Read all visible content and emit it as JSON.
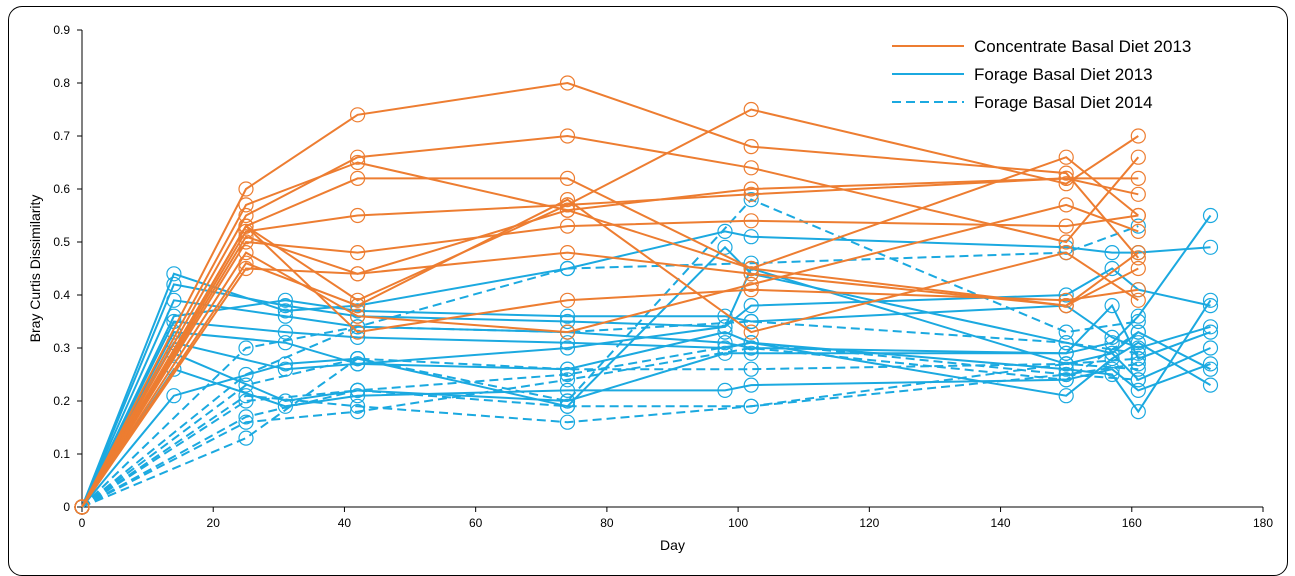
{
  "chart_data": {
    "type": "line",
    "xlabel": "Day",
    "ylabel": "Bray Curtis Dissimilarity",
    "xlim": [
      0,
      180
    ],
    "ylim": [
      0,
      0.9
    ],
    "xticks": [
      0,
      20,
      40,
      60,
      80,
      100,
      120,
      140,
      160,
      180
    ],
    "yticks": [
      0,
      0.1,
      0.2,
      0.3,
      0.4,
      0.5,
      0.6,
      0.7,
      0.8,
      0.9
    ],
    "grid": false,
    "legend_position": "top-right",
    "legend": [
      {
        "label": "Concentrate Basal Diet 2013",
        "color": "#ED7D31",
        "dash": "solid"
      },
      {
        "label": "Forage Basal Diet 2013",
        "color": "#1BA9E0",
        "dash": "solid"
      },
      {
        "label": "Forage Basal Diet 2014",
        "color": "#1BA9E0",
        "dash": "dashed"
      }
    ],
    "series": [
      {
        "group": "Concentrate Basal Diet 2013",
        "x": [
          0,
          25,
          42,
          74,
          102,
          150,
          161
        ],
        "y": [
          0,
          0.6,
          0.74,
          0.8,
          0.68,
          0.63,
          0.47
        ]
      },
      {
        "group": "Concentrate Basal Diet 2013",
        "x": [
          0,
          25,
          42,
          74,
          102,
          150,
          161
        ],
        "y": [
          0,
          0.57,
          0.65,
          0.56,
          0.6,
          0.62,
          0.59
        ]
      },
      {
        "group": "Concentrate Basal Diet 2013",
        "x": [
          0,
          25,
          42,
          74,
          102,
          150,
          161
        ],
        "y": [
          0,
          0.55,
          0.66,
          0.7,
          0.64,
          0.5,
          0.66
        ]
      },
      {
        "group": "Concentrate Basal Diet 2013",
        "x": [
          0,
          25,
          42,
          74,
          102,
          150,
          161
        ],
        "y": [
          0,
          0.53,
          0.62,
          0.62,
          0.45,
          0.38,
          0.48
        ]
      },
      {
        "group": "Concentrate Basal Diet 2013",
        "x": [
          0,
          25,
          42,
          74,
          102,
          150,
          161
        ],
        "y": [
          0,
          0.52,
          0.55,
          0.57,
          0.59,
          0.62,
          0.62
        ]
      },
      {
        "group": "Concentrate Basal Diet 2013",
        "x": [
          0,
          25,
          42,
          74,
          102,
          150,
          161
        ],
        "y": [
          0,
          0.5,
          0.48,
          0.53,
          0.54,
          0.53,
          0.55
        ]
      },
      {
        "group": "Concentrate Basal Diet 2013",
        "x": [
          0,
          25,
          42,
          74,
          102,
          150,
          161
        ],
        "y": [
          0,
          0.45,
          0.44,
          0.48,
          0.44,
          0.38,
          0.45
        ]
      },
      {
        "group": "Concentrate Basal Diet 2013",
        "x": [
          0,
          25,
          42,
          74,
          102,
          150,
          161
        ],
        "y": [
          0,
          0.53,
          0.39,
          0.57,
          0.75,
          0.61,
          0.7
        ]
      },
      {
        "group": "Concentrate Basal Diet 2013",
        "x": [
          0,
          25,
          42,
          74,
          102,
          150,
          161
        ],
        "y": [
          0,
          0.48,
          0.36,
          0.33,
          0.42,
          0.57,
          0.52
        ]
      },
      {
        "group": "Concentrate Basal Diet 2013",
        "x": [
          0,
          25,
          42,
          74,
          102,
          150,
          161
        ],
        "y": [
          0,
          0.53,
          0.33,
          0.39,
          0.41,
          0.39,
          0.41
        ]
      },
      {
        "group": "Concentrate Basal Diet 2013",
        "x": [
          0,
          25,
          42,
          74,
          102,
          150,
          161
        ],
        "y": [
          0,
          0.51,
          0.44,
          0.56,
          0.45,
          0.66,
          0.55
        ]
      },
      {
        "group": "Concentrate Basal Diet 2013",
        "x": [
          0,
          25,
          42,
          74,
          102,
          150,
          161
        ],
        "y": [
          0,
          0.46,
          0.38,
          0.58,
          0.33,
          0.48,
          0.39
        ]
      },
      {
        "group": "Forage Basal Diet 2013",
        "x": [
          0,
          14,
          31,
          42,
          74,
          98,
          102,
          150,
          157,
          161,
          172
        ],
        "y": [
          0,
          0.44,
          0.37,
          0.38,
          0.45,
          0.52,
          0.51,
          0.49,
          0.48,
          0.48,
          0.49
        ]
      },
      {
        "group": "Forage Basal Diet 2013",
        "x": [
          0,
          14,
          31,
          42,
          74,
          98,
          102,
          150,
          157,
          161,
          172
        ],
        "y": [
          0,
          0.42,
          0.38,
          0.36,
          0.35,
          0.34,
          0.38,
          0.4,
          0.45,
          0.41,
          0.38
        ]
      },
      {
        "group": "Forage Basal Diet 2013",
        "x": [
          0,
          14,
          31,
          42,
          74,
          98,
          102,
          150,
          157,
          161,
          172
        ],
        "y": [
          0,
          0.39,
          0.36,
          0.34,
          0.33,
          0.31,
          0.3,
          0.29,
          0.31,
          0.36,
          0.55
        ]
      },
      {
        "group": "Forage Basal Diet 2013",
        "x": [
          0,
          14,
          31,
          42,
          74,
          98,
          102,
          150,
          157,
          161,
          172
        ],
        "y": [
          0,
          0.35,
          0.33,
          0.32,
          0.31,
          0.3,
          0.31,
          0.26,
          0.25,
          0.18,
          0.39
        ]
      },
      {
        "group": "Forage Basal Diet 2013",
        "x": [
          0,
          14,
          31,
          42,
          74,
          98,
          102,
          150,
          157,
          161,
          172
        ],
        "y": [
          0,
          0.33,
          0.31,
          0.27,
          0.3,
          0.34,
          0.45,
          0.27,
          0.29,
          0.33,
          0.26
        ]
      },
      {
        "group": "Forage Basal Diet 2013",
        "x": [
          0,
          14,
          31,
          42,
          74,
          98,
          102,
          150,
          157,
          161,
          172
        ],
        "y": [
          0,
          0.31,
          0.26,
          0.27,
          0.26,
          0.33,
          0.31,
          0.21,
          0.28,
          0.31,
          0.23
        ]
      },
      {
        "group": "Forage Basal Diet 2013",
        "x": [
          0,
          14,
          31,
          42,
          74,
          98,
          102,
          150,
          157,
          161,
          172
        ],
        "y": [
          0,
          0.29,
          0.2,
          0.22,
          0.2,
          0.29,
          0.29,
          0.29,
          0.38,
          0.28,
          0.33
        ]
      },
      {
        "group": "Forage Basal Diet 2013",
        "x": [
          0,
          14,
          31,
          42,
          74,
          98,
          102,
          150,
          157,
          161,
          172
        ],
        "y": [
          0,
          0.26,
          0.19,
          0.21,
          0.22,
          0.22,
          0.23,
          0.24,
          0.26,
          0.22,
          0.27
        ]
      },
      {
        "group": "Forage Basal Diet 2013",
        "x": [
          0,
          14,
          31,
          42,
          74,
          98,
          102,
          150,
          157,
          161,
          172
        ],
        "y": [
          0,
          0.21,
          0.27,
          0.28,
          0.19,
          0.49,
          0.44,
          0.31,
          0.29,
          0.24,
          0.3
        ]
      },
      {
        "group": "Forage Basal Diet 2013",
        "x": [
          0,
          14,
          31,
          42,
          74,
          98,
          102,
          150,
          157,
          161,
          172
        ],
        "y": [
          0,
          0.36,
          0.39,
          0.37,
          0.36,
          0.36,
          0.35,
          0.38,
          0.32,
          0.3,
          0.34
        ]
      },
      {
        "group": "Forage Basal Diet 2014",
        "x": [
          0,
          25,
          42,
          74,
          102,
          150,
          161
        ],
        "y": [
          0,
          0.3,
          0.34,
          0.45,
          0.46,
          0.48,
          0.53
        ]
      },
      {
        "group": "Forage Basal Diet 2014",
        "x": [
          0,
          25,
          42,
          74,
          102,
          150,
          161
        ],
        "y": [
          0,
          0.25,
          0.34,
          0.33,
          0.35,
          0.31,
          0.29
        ]
      },
      {
        "group": "Forage Basal Diet 2014",
        "x": [
          0,
          25,
          42,
          74,
          102,
          150,
          161
        ],
        "y": [
          0,
          0.23,
          0.28,
          0.26,
          0.26,
          0.27,
          0.26
        ]
      },
      {
        "group": "Forage Basal Diet 2014",
        "x": [
          0,
          25,
          42,
          74,
          102,
          150,
          161
        ],
        "y": [
          0,
          0.21,
          0.19,
          0.16,
          0.19,
          0.25,
          0.24
        ]
      },
      {
        "group": "Forage Basal Diet 2014",
        "x": [
          0,
          25,
          42,
          74,
          102,
          150,
          161
        ],
        "y": [
          0,
          0.2,
          0.22,
          0.19,
          0.19,
          0.27,
          0.28
        ]
      },
      {
        "group": "Forage Basal Diet 2014",
        "x": [
          0,
          25,
          42,
          74,
          102,
          150,
          161
        ],
        "y": [
          0,
          0.17,
          0.22,
          0.25,
          0.31,
          0.25,
          0.27
        ]
      },
      {
        "group": "Forage Basal Diet 2014",
        "x": [
          0,
          25,
          42,
          74,
          102,
          150,
          161
        ],
        "y": [
          0,
          0.16,
          0.18,
          0.24,
          0.3,
          0.24,
          0.33
        ]
      },
      {
        "group": "Forage Basal Diet 2014",
        "x": [
          0,
          25,
          42,
          74,
          102,
          150,
          161
        ],
        "y": [
          0,
          0.13,
          0.28,
          0.2,
          0.58,
          0.33,
          0.35
        ]
      }
    ]
  }
}
